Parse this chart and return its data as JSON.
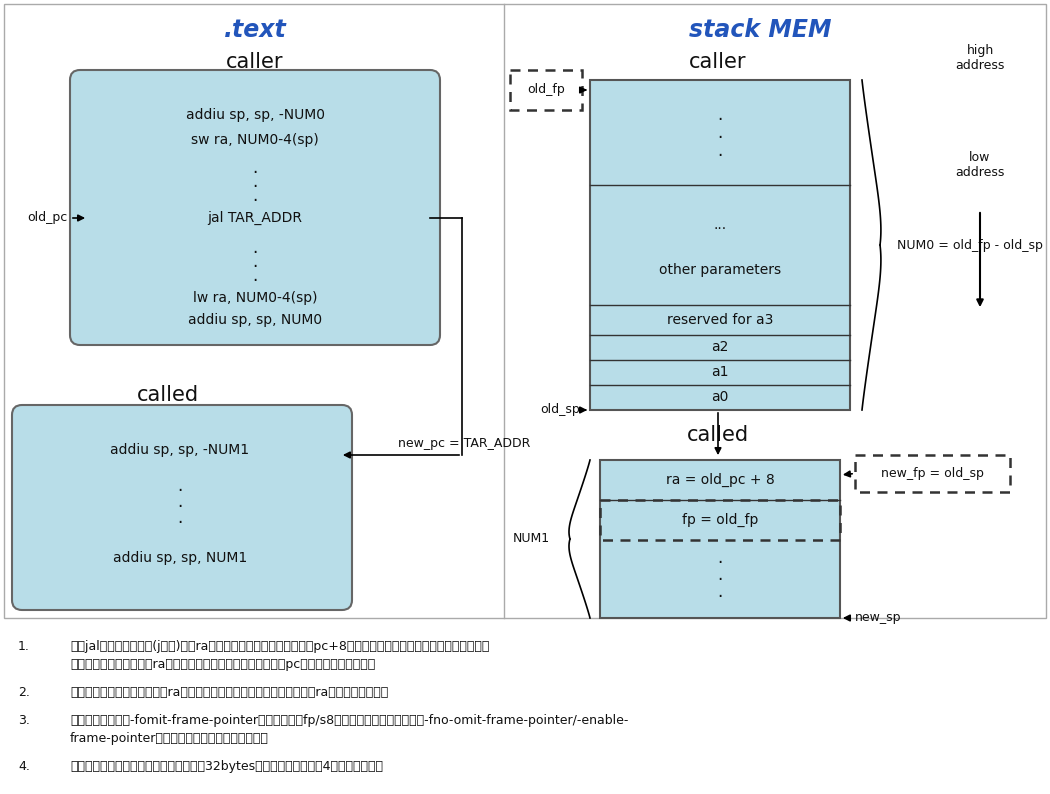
{
  "bg_color": "#ffffff",
  "box_fill": "#b8dde8",
  "box_edge": "#666666",
  "title_color": "#2255bb",
  "text_color": "#111111",
  "left_title": ".text",
  "right_title": "stack MEM",
  "caller_label": "caller",
  "called_label": "called",
  "old_fp_label": "old_fp",
  "old_sp_label": "old_sp",
  "old_pc_label": "old_pc",
  "new_fp_label": "new_fp = old_sp",
  "new_sp_label": "new_sp",
  "new_pc_label": "new_pc = TAR_ADDR",
  "num0_label": "NUM0 = old_fp - old_sp",
  "num1_label": "NUM1",
  "high_addr": "high\naddress",
  "low_addr": "low\naddress",
  "caller_code_top": [
    "addiu sp, sp, -NUM0",
    "sw ra, NUM0-4(sp)"
  ],
  "caller_code_mid": "jal TAR_ADDR",
  "caller_code_bot": [
    "lw ra, NUM0-4(sp)",
    "addiu sp, sp, NUM0"
  ],
  "called_code_top": "addiu sp, sp, -NUM1",
  "called_code_bot": "addiu sp, sp, NUM1",
  "stack_caller_rows": [
    ".",
    ".",
    ".",
    "...",
    "other parameters",
    "reserved for a3",
    "a2",
    "a1",
    "a0"
  ],
  "stack_called_rows": [
    "ra = old_pc + 8",
    "fp = old_fp",
    ".",
    ".",
    "."
  ],
  "note1_num": "1.",
  "note1_line1": "执行jal这样的跳转指令(j除外)时，ra寄存器的值自动（硬件）赋值为pc+8，即当前函数的返回地址由硬件自己控制，",
  "note1_line2": "不需多余的软件指令去给ra寄存器赋值（即使想也无法做，因为pc寄存器外部无法访问）",
  "note2_num": "2.",
  "note2_line1": "叶子函数的栈空间中不会存储ra值（没有必要，返回的时候直接使用当前ra寄存器的值即可）",
  "note3_num": "3.",
  "note3_line1": "默认编译选项下（-fomit-frame-pointer），不会使用fp/s8去存储栈底地址，可以使用-fno-omit-frame-pointer/-enable-",
  "note3_line2": "frame-pointer强制使用，但是这样会增加代码量",
  "note4_num": "4.",
  "note4_line1": "只要有子函数需要调用，则至少为之分配32bytes空间，无论其是否有4个参数需要传递"
}
